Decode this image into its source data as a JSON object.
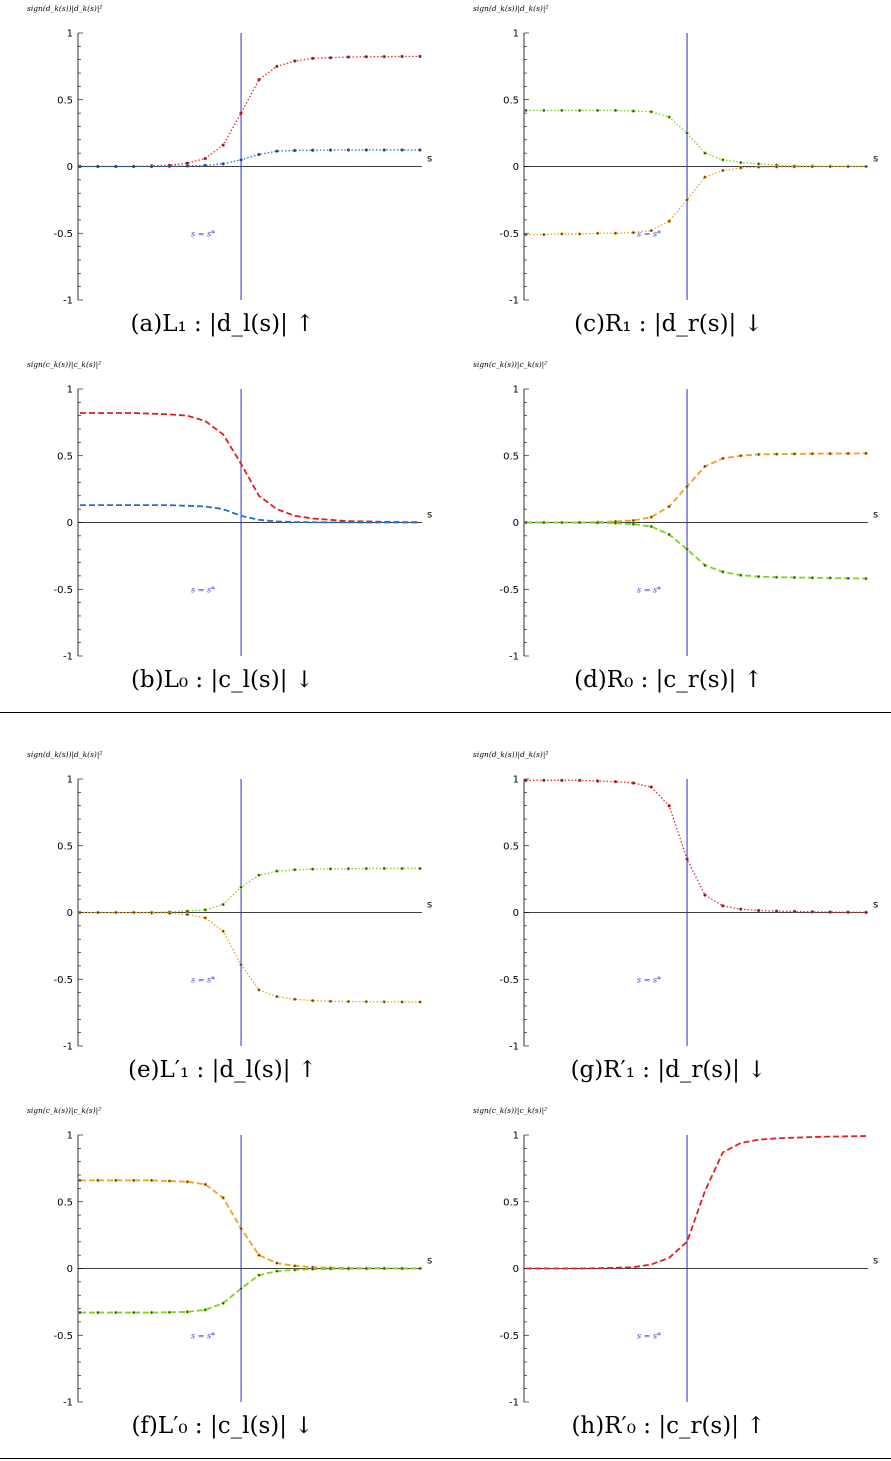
{
  "labels": {
    "ylabel_d": "sign(d_k(s))|d_k(s)|²",
    "ylabel_c": "sign(c_k(s))|c_k(s)|²",
    "s_axis": "s",
    "s_star": "s = s*"
  },
  "chart_data": [
    {
      "id": "a",
      "type": "line",
      "style": "dotted",
      "caption": "(a)L₁ : |d_l(s)| ↑",
      "ylabel": "sign(d_k(s))|d_k(s)|²",
      "xlabel": "s",
      "ylim": [
        -1,
        1
      ],
      "yticks": [
        "1",
        "0.5",
        "0",
        "-0.5",
        "-1"
      ],
      "vline": 9,
      "annotation": "s = s*",
      "x": [
        0,
        1,
        2,
        3,
        4,
        5,
        6,
        7,
        8,
        9,
        10,
        11,
        12,
        13,
        14,
        15,
        16,
        17,
        18,
        19
      ],
      "series": [
        {
          "color": "#e03030",
          "values": [
            0,
            0,
            0,
            0,
            0.005,
            0.01,
            0.025,
            0.06,
            0.16,
            0.4,
            0.65,
            0.75,
            0.79,
            0.81,
            0.815,
            0.82,
            0.822,
            0.823,
            0.824,
            0.825
          ]
        },
        {
          "color": "#3070d0",
          "values": [
            0,
            0,
            0,
            0,
            0,
            0.002,
            0.004,
            0.008,
            0.02,
            0.05,
            0.09,
            0.115,
            0.12,
            0.122,
            0.123,
            0.124,
            0.124,
            0.124,
            0.124,
            0.124
          ]
        }
      ]
    },
    {
      "id": "c",
      "type": "line",
      "style": "dotted",
      "caption": "(c)R₁ : |d_r(s)| ↓",
      "ylabel": "sign(d_k(s))|d_k(s)|²",
      "xlabel": "s",
      "ylim": [
        -1,
        1
      ],
      "yticks": [
        "1",
        "0.5",
        "0",
        "-0.5",
        "-1"
      ],
      "vline": 9,
      "annotation": "s = s*",
      "x": [
        0,
        1,
        2,
        3,
        4,
        5,
        6,
        7,
        8,
        9,
        10,
        11,
        12,
        13,
        14,
        15,
        16,
        17,
        18,
        19
      ],
      "series": [
        {
          "color": "#7ed321",
          "values": [
            0.42,
            0.42,
            0.42,
            0.42,
            0.42,
            0.42,
            0.415,
            0.41,
            0.37,
            0.25,
            0.1,
            0.05,
            0.03,
            0.02,
            0.01,
            0.005,
            0.003,
            0.002,
            0.001,
            0
          ]
        },
        {
          "color": "#f0a020",
          "values": [
            -0.51,
            -0.51,
            -0.505,
            -0.505,
            -0.5,
            -0.5,
            -0.495,
            -0.48,
            -0.41,
            -0.25,
            -0.08,
            -0.03,
            -0.01,
            -0.005,
            -0.003,
            -0.002,
            -0.001,
            0,
            0,
            0
          ]
        }
      ]
    },
    {
      "id": "b",
      "type": "line",
      "style": "dashed",
      "caption": "(b)L₀ : |c_l(s)| ↓",
      "ylabel": "sign(c_k(s))|c_k(s)|²",
      "xlabel": "s",
      "ylim": [
        -1,
        1
      ],
      "yticks": [
        "1",
        "0.5",
        "0",
        "-0.5",
        "-1"
      ],
      "vline": 9,
      "annotation": "s = s*",
      "x": [
        0,
        1,
        2,
        3,
        4,
        5,
        6,
        7,
        8,
        9,
        10,
        11,
        12,
        13,
        14,
        15,
        16,
        17,
        18,
        19
      ],
      "series": [
        {
          "color": "#e02020",
          "values": [
            0.82,
            0.82,
            0.82,
            0.82,
            0.815,
            0.81,
            0.8,
            0.76,
            0.66,
            0.44,
            0.2,
            0.1,
            0.05,
            0.03,
            0.02,
            0.01,
            0.008,
            0.005,
            0.003,
            0.002
          ]
        },
        {
          "color": "#2070d0",
          "values": [
            0.13,
            0.13,
            0.13,
            0.13,
            0.13,
            0.13,
            0.125,
            0.12,
            0.1,
            0.05,
            0.02,
            0.008,
            0.003,
            0.002,
            0.001,
            0.001,
            0,
            0,
            0,
            0
          ]
        }
      ]
    },
    {
      "id": "d",
      "type": "line",
      "style": "dashed",
      "caption": "(d)R₀ : |c_r(s)| ↑",
      "ylabel": "sign(c_k(s))|c_k(s)|²",
      "xlabel": "s",
      "ylim": [
        -1,
        1
      ],
      "yticks": [
        "1",
        "0.5",
        "0",
        "-0.5",
        "-1"
      ],
      "vline": 9,
      "annotation": "s = s*",
      "x": [
        0,
        1,
        2,
        3,
        4,
        5,
        6,
        7,
        8,
        9,
        10,
        11,
        12,
        13,
        14,
        15,
        16,
        17,
        18,
        19
      ],
      "series": [
        {
          "color": "#f0a020",
          "values": [
            0,
            0,
            0,
            0,
            0.003,
            0.008,
            0.015,
            0.04,
            0.12,
            0.27,
            0.42,
            0.48,
            0.5,
            0.51,
            0.512,
            0.514,
            0.515,
            0.516,
            0.517,
            0.518
          ]
        },
        {
          "color": "#7ed321",
          "values": [
            0,
            0,
            0,
            0,
            -0.002,
            -0.005,
            -0.012,
            -0.03,
            -0.09,
            -0.2,
            -0.32,
            -0.37,
            -0.395,
            -0.405,
            -0.41,
            -0.412,
            -0.414,
            -0.416,
            -0.418,
            -0.42
          ]
        }
      ]
    },
    {
      "id": "e",
      "type": "line",
      "style": "dotted",
      "caption": "(e)L′₁ : |d_l(s)| ↑",
      "ylabel": "sign(d_k(s))|d_k(s)|²",
      "xlabel": "s",
      "ylim": [
        -1,
        1
      ],
      "yticks": [
        "1",
        "0.5",
        "0",
        "-0.5",
        "-1"
      ],
      "vline": 9,
      "annotation": "s = s*",
      "x": [
        0,
        1,
        2,
        3,
        4,
        5,
        6,
        7,
        8,
        9,
        10,
        11,
        12,
        13,
        14,
        15,
        16,
        17,
        18,
        19
      ],
      "series": [
        {
          "color": "#7ed321",
          "values": [
            0,
            0,
            0,
            0,
            0.002,
            0.004,
            0.01,
            0.02,
            0.06,
            0.19,
            0.28,
            0.31,
            0.32,
            0.325,
            0.327,
            0.328,
            0.329,
            0.33,
            0.33,
            0.33
          ]
        },
        {
          "color": "#f0a020",
          "values": [
            0,
            0,
            0,
            0,
            -0.003,
            -0.006,
            -0.015,
            -0.04,
            -0.14,
            -0.39,
            -0.58,
            -0.63,
            -0.65,
            -0.66,
            -0.665,
            -0.667,
            -0.668,
            -0.669,
            -0.67,
            -0.67
          ]
        }
      ]
    },
    {
      "id": "g",
      "type": "line",
      "style": "dotted",
      "caption": "(g)R′₁ : |d_r(s)| ↓",
      "ylabel": "sign(d_k(s))|d_k(s)|²",
      "xlabel": "s",
      "ylim": [
        -1,
        1
      ],
      "yticks": [
        "1",
        "0.5",
        "0",
        "-0.5",
        "-1"
      ],
      "vline": 9,
      "annotation": "s = s*",
      "x": [
        0,
        1,
        2,
        3,
        4,
        5,
        6,
        7,
        8,
        9,
        10,
        11,
        12,
        13,
        14,
        15,
        16,
        17,
        18,
        19
      ],
      "series": [
        {
          "color": "#e03030",
          "values": [
            0.99,
            0.99,
            0.99,
            0.99,
            0.985,
            0.98,
            0.97,
            0.94,
            0.8,
            0.4,
            0.13,
            0.05,
            0.025,
            0.015,
            0.01,
            0.008,
            0.005,
            0.003,
            0.002,
            0.001
          ]
        }
      ]
    },
    {
      "id": "f",
      "type": "line",
      "style": "dashed",
      "caption": "(f)L′₀ : |c_l(s)| ↓",
      "ylabel": "sign(c_k(s))|c_k(s)|²",
      "xlabel": "s",
      "ylim": [
        -1,
        1
      ],
      "yticks": [
        "1",
        "0.5",
        "0",
        "-0.5",
        "-1"
      ],
      "vline": 9,
      "annotation": "s = s*",
      "x": [
        0,
        1,
        2,
        3,
        4,
        5,
        6,
        7,
        8,
        9,
        10,
        11,
        12,
        13,
        14,
        15,
        16,
        17,
        18,
        19
      ],
      "series": [
        {
          "color": "#f0a020",
          "values": [
            0.66,
            0.66,
            0.66,
            0.66,
            0.66,
            0.655,
            0.65,
            0.63,
            0.53,
            0.3,
            0.1,
            0.04,
            0.02,
            0.01,
            0.006,
            0.004,
            0.003,
            0.002,
            0.001,
            0.001
          ]
        },
        {
          "color": "#7ed321",
          "values": [
            -0.33,
            -0.33,
            -0.33,
            -0.33,
            -0.33,
            -0.328,
            -0.325,
            -0.31,
            -0.26,
            -0.15,
            -0.05,
            -0.02,
            -0.01,
            -0.005,
            -0.003,
            -0.002,
            -0.001,
            0,
            0,
            0
          ]
        }
      ]
    },
    {
      "id": "h",
      "type": "line",
      "style": "dashed",
      "caption": "(h)R′₀ : |c_r(s)| ↑",
      "ylabel": "sign(c_k(s))|c_k(s)|²",
      "xlabel": "s",
      "ylim": [
        -1,
        1
      ],
      "yticks": [
        "1",
        "0.5",
        "0",
        "-0.5",
        "-1"
      ],
      "vline": 9,
      "annotation": "s = s*",
      "x": [
        0,
        1,
        2,
        3,
        4,
        5,
        6,
        7,
        8,
        9,
        10,
        11,
        12,
        13,
        14,
        15,
        16,
        17,
        18,
        19
      ],
      "series": [
        {
          "color": "#e02020",
          "values": [
            0,
            0,
            0,
            0,
            0.002,
            0.005,
            0.01,
            0.03,
            0.08,
            0.2,
            0.58,
            0.87,
            0.94,
            0.965,
            0.975,
            0.98,
            0.985,
            0.988,
            0.99,
            0.992
          ]
        }
      ]
    }
  ]
}
